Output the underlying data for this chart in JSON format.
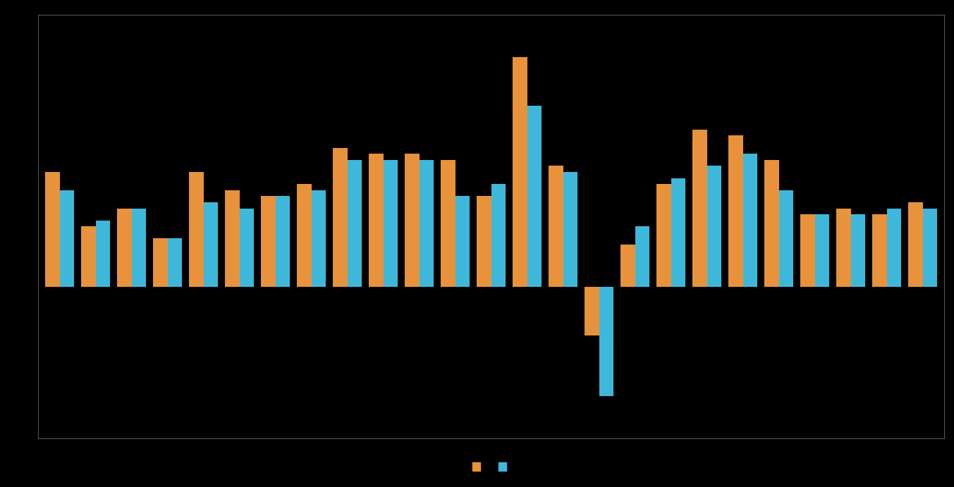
{
  "orange_values": [
    19,
    10,
    13,
    8,
    19,
    16,
    15,
    17,
    23,
    22,
    22,
    21,
    15,
    38,
    20,
    -8,
    7,
    17,
    26,
    25,
    21,
    12,
    13,
    12,
    14
  ],
  "blue_values": [
    16,
    11,
    13,
    8,
    14,
    13,
    15,
    16,
    21,
    21,
    21,
    15,
    17,
    30,
    19,
    -18,
    10,
    18,
    20,
    22,
    16,
    12,
    12,
    13,
    13
  ],
  "bar_color_orange": "#E8923B",
  "bar_color_blue": "#3EB8DA",
  "background_color": "#000000",
  "legend_label_orange": "",
  "legend_label_blue": "",
  "ylim_min": -25,
  "ylim_max": 45,
  "bar_width": 0.4,
  "grid_color": "#444444",
  "grid_linewidth": 0.6,
  "spine_color": "#555555"
}
